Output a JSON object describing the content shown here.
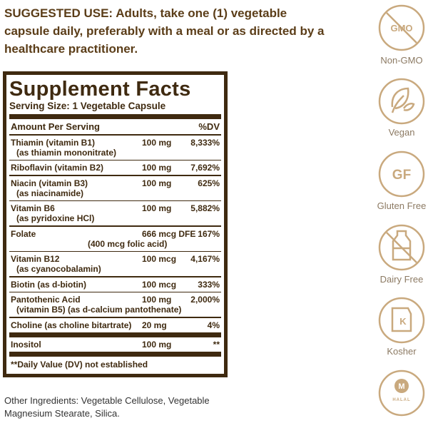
{
  "suggested_use": {
    "label": "SUGGESTED USE:",
    "text": "Adults, take one (1) vegetable capsule daily, preferably with a meal or as directed by a healthcare practitioner."
  },
  "facts": {
    "title": "Supplement Facts",
    "serving_size": "Serving Size: 1 Vegetable Capsule",
    "header": [
      "Amount Per Serving",
      "%DV"
    ],
    "rows": [
      {
        "name": "Thiamin (vitamin B1)",
        "note": "(as thiamin mononitrate)",
        "amount": "100 mg",
        "dv": "8,333%"
      },
      {
        "name": "Riboflavin (vitamin B2)",
        "amount": "100 mg",
        "dv": "7,692%"
      },
      {
        "name": "Niacin (vitamin B3)",
        "note": "(as niacinamide)",
        "amount": "100 mg",
        "dv": "625%"
      },
      {
        "name": "Vitamin B6",
        "note": "(as pyridoxine HCl)",
        "amount": "100 mg",
        "dv": "5,882%"
      },
      {
        "name": "Folate",
        "amount": "666 mcg DFE",
        "dv": "167%",
        "amount_note": "(400 mcg folic acid)"
      },
      {
        "name": "Vitamin B12",
        "note": "(as cyanocobalamin)",
        "amount": "100 mcg",
        "dv": "4,167%"
      },
      {
        "name": "Biotin (as d-biotin)",
        "amount": "100 mcg",
        "dv": "333%"
      },
      {
        "name": "Pantothenic Acid",
        "note": "(vitamin B5) (as d-calcium pantothenate)",
        "amount": "100 mg",
        "dv": "2,000%"
      },
      {
        "name": "Choline (as choline bitartrate)",
        "amount": "20 mg",
        "dv": "4%"
      },
      {
        "name": "Inositol",
        "amount": "100 mg",
        "dv": "**"
      }
    ],
    "footnote": "**Daily Value (DV) not established"
  },
  "other_ingredients": "Other Ingredients: Vegetable Cellulose, Vegetable Magnesium Stearate, Silica.",
  "badges": [
    {
      "icon_text": "GMO",
      "label": "Non-GMO"
    },
    {
      "label": "Vegan"
    },
    {
      "icon_text": "GF",
      "label": "Gluten Free"
    },
    {
      "label": "Dairy Free"
    },
    {
      "icon_text": "K",
      "label": "Kosher"
    },
    {
      "icon_text": "M",
      "icon_subtext": "HALAL"
    }
  ]
}
